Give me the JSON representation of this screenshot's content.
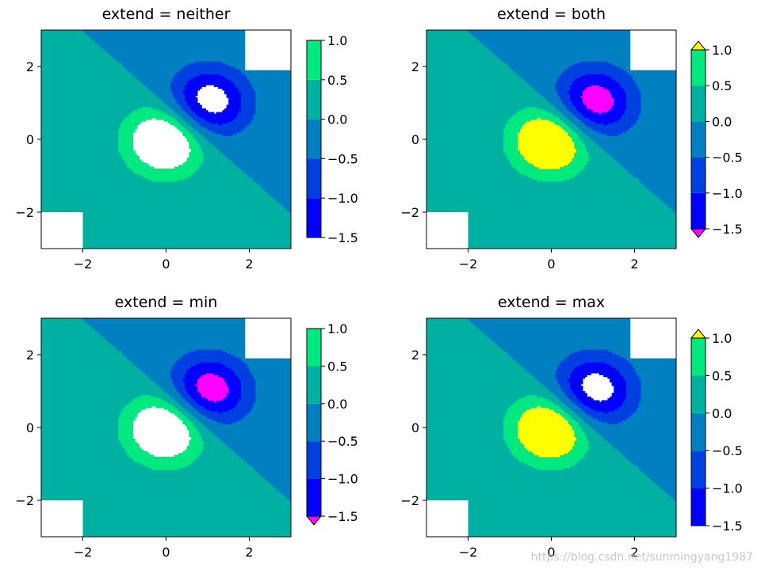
{
  "chart_data": [
    {
      "type": "contourf",
      "title": "extend = neither",
      "extend": "neither",
      "xlim": [
        -3,
        3
      ],
      "ylim": [
        -3,
        3
      ],
      "xticks": [
        -2,
        0,
        2
      ],
      "xtick_labels": [
        "−2",
        "0",
        "2"
      ],
      "yticks": [
        -2,
        0,
        2
      ],
      "ytick_labels": [
        "−2",
        "0",
        "2"
      ],
      "levels": [
        -1.5,
        -1.0,
        -0.5,
        0.0,
        0.5,
        1.0
      ],
      "colorbar_tick_labels": [
        "1.0",
        "0.5",
        "0.0",
        "−0.5",
        "−1.0",
        "−1.5"
      ],
      "colors": [
        "#0000ff",
        "#0040e0",
        "#0080c0",
        "#00b0a0",
        "#00e880"
      ],
      "under_color": null,
      "over_color": null,
      "masked_corners": [
        [
          1.9,
          3,
          1.9,
          3
        ],
        [
          -3,
          -2,
          -3,
          -2
        ]
      ],
      "color_legend": "levels -1.5 to 1.0, five bands"
    },
    {
      "type": "contourf",
      "title": "extend = both",
      "extend": "both",
      "xlim": [
        -3,
        3
      ],
      "ylim": [
        -3,
        3
      ],
      "xticks": [
        -2,
        0,
        2
      ],
      "xtick_labels": [
        "−2",
        "0",
        "2"
      ],
      "yticks": [
        -2,
        0,
        2
      ],
      "ytick_labels": [
        "−2",
        "0",
        "2"
      ],
      "levels": [
        -1.5,
        -1.0,
        -0.5,
        0.0,
        0.5,
        1.0
      ],
      "colorbar_tick_labels": [
        "1.0",
        "0.5",
        "0.0",
        "−0.5",
        "−1.0",
        "−1.5"
      ],
      "colors": [
        "#0000ff",
        "#0040e0",
        "#0080c0",
        "#00b0a0",
        "#00e880"
      ],
      "under_color": "#ff00ff",
      "over_color": "#ffff00",
      "masked_corners": [
        [
          1.9,
          3,
          1.9,
          3
        ],
        [
          -3,
          -2,
          -3,
          -2
        ]
      ]
    },
    {
      "type": "contourf",
      "title": "extend = min",
      "extend": "min",
      "xlim": [
        -3,
        3
      ],
      "ylim": [
        -3,
        3
      ],
      "xticks": [
        -2,
        0,
        2
      ],
      "xtick_labels": [
        "−2",
        "0",
        "2"
      ],
      "yticks": [
        -2,
        0,
        2
      ],
      "ytick_labels": [
        "−2",
        "0",
        "2"
      ],
      "levels": [
        -1.5,
        -1.0,
        -0.5,
        0.0,
        0.5,
        1.0
      ],
      "colorbar_tick_labels": [
        "1.0",
        "0.5",
        "0.0",
        "−0.5",
        "−1.0",
        "−1.5"
      ],
      "colors": [
        "#0000ff",
        "#0040e0",
        "#0080c0",
        "#00b0a0",
        "#00e880"
      ],
      "under_color": "#ff00ff",
      "over_color": null,
      "masked_corners": [
        [
          1.9,
          3,
          1.9,
          3
        ],
        [
          -3,
          -2,
          -3,
          -2
        ]
      ]
    },
    {
      "type": "contourf",
      "title": "extend = max",
      "extend": "max",
      "xlim": [
        -3,
        3
      ],
      "ylim": [
        -3,
        3
      ],
      "xticks": [
        -2,
        0,
        2
      ],
      "xtick_labels": [
        "−2",
        "0",
        "2"
      ],
      "yticks": [
        -2,
        0,
        2
      ],
      "ytick_labels": [
        "−2",
        "0",
        "2"
      ],
      "levels": [
        -1.5,
        -1.0,
        -0.5,
        0.0,
        0.5,
        1.0
      ],
      "colorbar_tick_labels": [
        "1.0",
        "0.5",
        "0.0",
        "−0.5",
        "−1.0",
        "−1.5"
      ],
      "colors": [
        "#0000ff",
        "#0040e0",
        "#0080c0",
        "#00b0a0",
        "#00e880"
      ],
      "under_color": null,
      "over_color": "#ffff00",
      "masked_corners": [
        [
          1.9,
          3,
          1.9,
          3
        ],
        [
          -3,
          -2,
          -3,
          -2
        ]
      ]
    }
  ],
  "watermark": "https://blog.csdn.net/sunmingyang1987"
}
